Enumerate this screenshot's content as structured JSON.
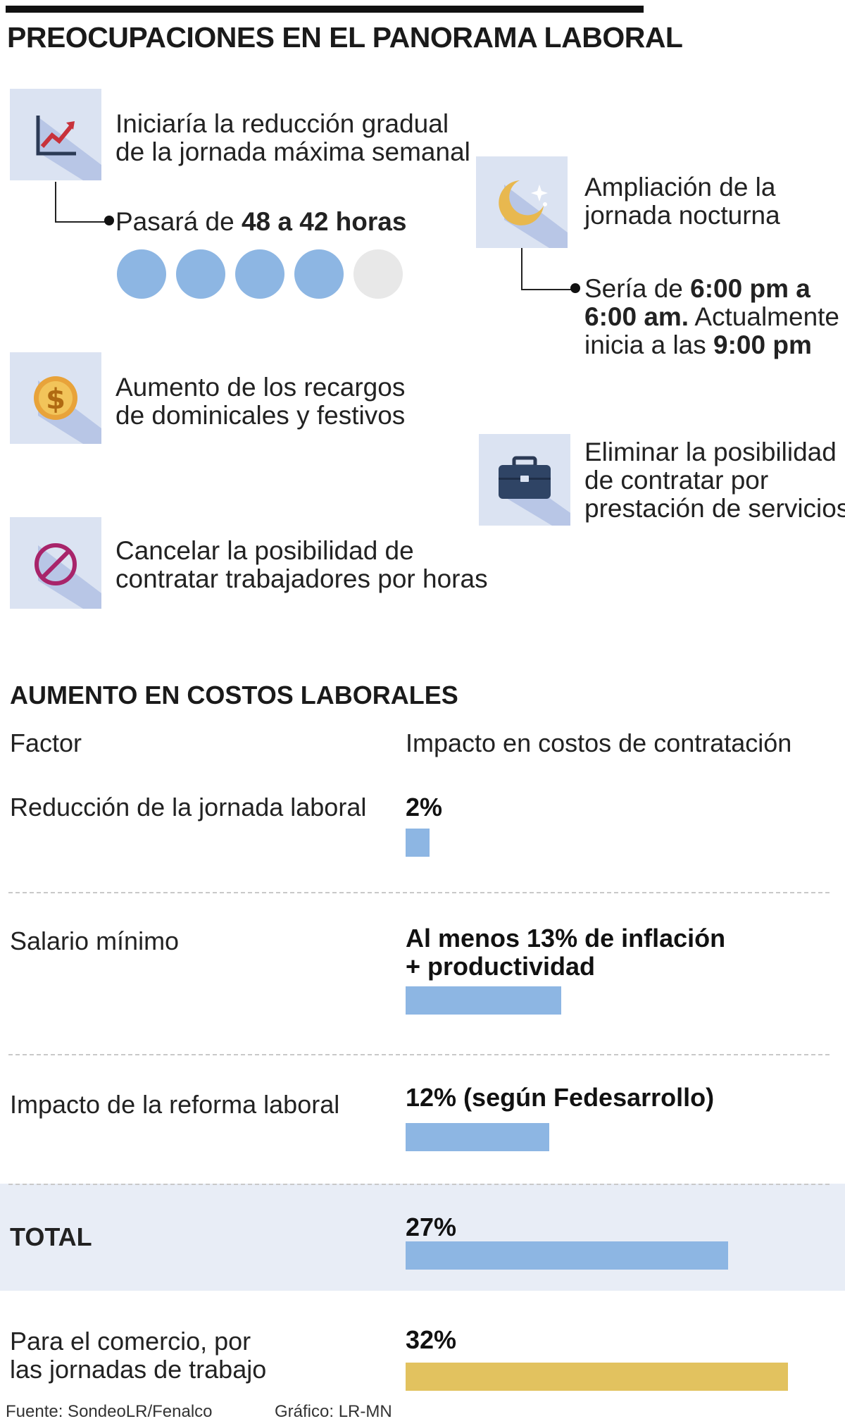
{
  "title": "PREOCUPACIONES EN EL PANORAMA LABORAL",
  "items": [
    {
      "icon": "rising-chart-icon",
      "text": [
        "Iniciaría la reducción gradual",
        "de la jornada máxima semanal"
      ]
    },
    {
      "icon": "moon-icon",
      "text": [
        "Ampliación de la",
        "jornada nocturna"
      ]
    },
    {
      "icon": "dollar-coin-icon",
      "text": [
        "Aumento de los recargos",
        "de dominicales y festivos"
      ]
    },
    {
      "icon": "briefcase-icon",
      "text": [
        "Eliminar la posibilidad",
        "de contratar por",
        "prestación de servicios"
      ]
    },
    {
      "icon": "prohibited-icon",
      "text": [
        "Cancelar la posibilidad de",
        "contratar trabajadores por horas"
      ]
    }
  ],
  "hours_note": {
    "prefix": "Pasará de ",
    "bold": "48 a 42 horas"
  },
  "hours_dots": {
    "filled": 4,
    "total": 5
  },
  "night_note": {
    "l1_prefix": "Sería de ",
    "l1_bold": "6:00 pm a",
    "l2_bold": "6:00 am.",
    "l2_rest": " Actualmente",
    "l3_prefix": "inicia a las ",
    "l3_bold": "9:00 pm"
  },
  "section2_title": "AUMENTO EN COSTOS LABORALES",
  "col_factor": "Factor",
  "col_impact": "Impacto en costos de contratación",
  "chart_data": {
    "type": "bar",
    "title": "AUMENTO EN COSTOS LABORALES",
    "xlabel": "Factor",
    "ylabel": "Impacto en costos de contratación",
    "rows": [
      {
        "factor": "Reducción de la jornada laboral",
        "label": [
          "2%"
        ],
        "value": 2
      },
      {
        "factor": "Salario mínimo",
        "label": [
          "Al menos 13% de inflación",
          "+ productividad"
        ],
        "value": 13
      },
      {
        "factor": "Impacto de la reforma laboral",
        "label": [
          "12% (según Fedesarrollo)"
        ],
        "value": 12
      },
      {
        "factor": "TOTAL",
        "label": [
          "27%"
        ],
        "value": 27
      },
      {
        "factor": [
          "Para el comercio, por",
          "las jornadas de trabajo"
        ],
        "label": [
          "32%"
        ],
        "value": 32
      }
    ],
    "colors": {
      "bar": "#8db6e3",
      "highlight": "#e2c25f"
    },
    "ylim": [
      0,
      32
    ]
  },
  "footer": {
    "source": "Fuente: SondeoLR/Fenalco",
    "credit": "Gráfico: LR-MN"
  },
  "colors": {
    "icon_bg": "#dbe3f2",
    "icon_shadow": "#b8c6e6",
    "dot_filled": "#8db6e3",
    "dot_empty": "#e8e8e8",
    "total_band": "#e8edf6"
  }
}
